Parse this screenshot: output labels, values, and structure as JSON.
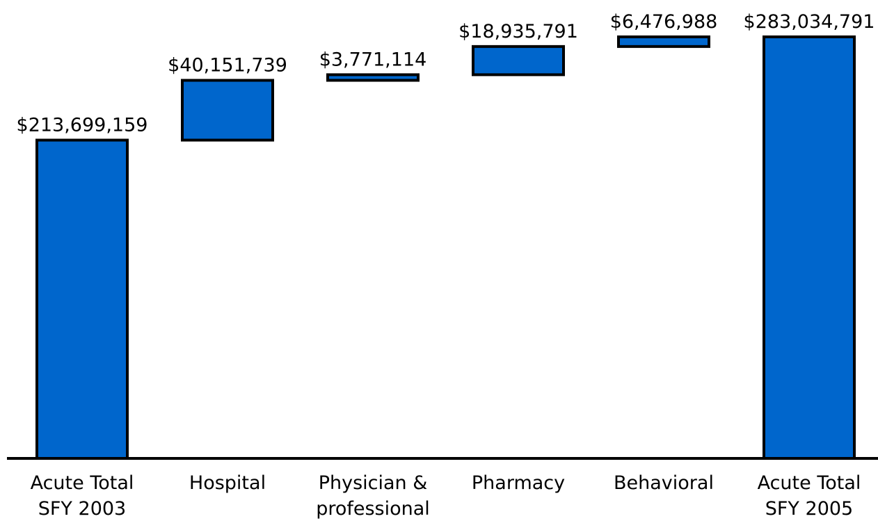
{
  "chart_data": {
    "type": "bar",
    "subtype": "waterfall",
    "title": "",
    "xlabel": "",
    "ylabel": "",
    "ylim": [
      0,
      283034791
    ],
    "grid": false,
    "legend": "none",
    "bar_color": "#0066CC",
    "bar_outline_color": "#000000",
    "categories": [
      [
        "Acute Total",
        "SFY 2003"
      ],
      [
        "Hospital"
      ],
      [
        "Physician &",
        "professional"
      ],
      [
        "Pharmacy"
      ],
      [
        "Behavioral"
      ],
      [
        "Acute Total",
        "SFY 2005"
      ]
    ],
    "bars": [
      {
        "kind": "total",
        "start": 0,
        "end": 213699159,
        "value": 213699159,
        "label": "$213,699,159"
      },
      {
        "kind": "increase",
        "start": 213699159,
        "end": 253850898,
        "value": 40151739,
        "label": "$40,151,739"
      },
      {
        "kind": "increase",
        "start": 253850898,
        "end": 257622012,
        "value": 3771114,
        "label": "$3,771,114"
      },
      {
        "kind": "increase",
        "start": 257622012,
        "end": 276557803,
        "value": 18935791,
        "label": "$18,935,791"
      },
      {
        "kind": "increase",
        "start": 276557803,
        "end": 283034791,
        "value": 6476988,
        "label": "$6,476,988"
      },
      {
        "kind": "total",
        "start": 0,
        "end": 283034791,
        "value": 283034791,
        "label": "$283,034,791"
      }
    ]
  }
}
